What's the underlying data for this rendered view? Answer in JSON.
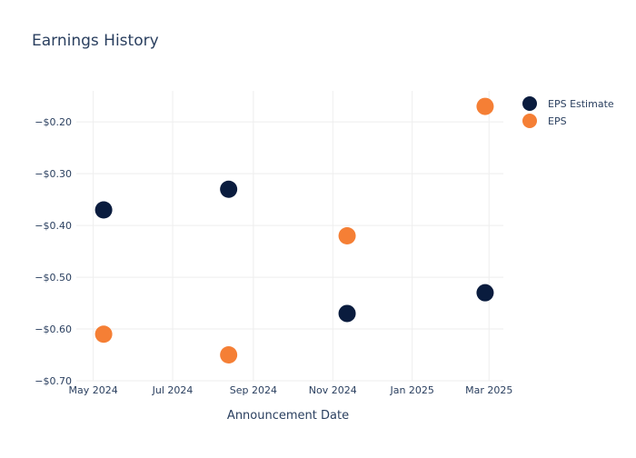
{
  "chart_data": {
    "type": "scatter",
    "title": "Earnings History",
    "xlabel": "Announcement Date",
    "ylabel": "",
    "x_tick_labels": [
      {
        "date": "2024-05-01",
        "label": "May 2024"
      },
      {
        "date": "2024-07-01",
        "label": "Jul 2024"
      },
      {
        "date": "2024-09-01",
        "label": "Sep 2024"
      },
      {
        "date": "2024-11-01",
        "label": "Nov 2024"
      },
      {
        "date": "2025-01-01",
        "label": "Jan 2025"
      },
      {
        "date": "2025-03-01",
        "label": "Mar 2025"
      }
    ],
    "y_ticks": [
      {
        "value": -0.2,
        "label": "−$0.20"
      },
      {
        "value": -0.3,
        "label": "−$0.30"
      },
      {
        "value": -0.4,
        "label": "−$0.40"
      },
      {
        "value": -0.5,
        "label": "−$0.50"
      },
      {
        "value": -0.6,
        "label": "−$0.60"
      },
      {
        "value": -0.7,
        "label": "−$0.70"
      }
    ],
    "xlim": [
      "2024-04-18",
      "2025-03-12"
    ],
    "ylim": [
      -0.7,
      -0.14
    ],
    "grid": true,
    "legend_position": "top-right",
    "series": [
      {
        "name": "EPS Estimate",
        "color": "#0a1c3e",
        "points": [
          {
            "x": "2024-05-09",
            "y": -0.37
          },
          {
            "x": "2024-08-13",
            "y": -0.33
          },
          {
            "x": "2024-11-12",
            "y": -0.57
          },
          {
            "x": "2025-02-26",
            "y": -0.53
          }
        ]
      },
      {
        "name": "EPS",
        "color": "#f57f35",
        "points": [
          {
            "x": "2024-05-09",
            "y": -0.61
          },
          {
            "x": "2024-08-13",
            "y": -0.65
          },
          {
            "x": "2024-11-12",
            "y": -0.42
          },
          {
            "x": "2025-02-26",
            "y": -0.17
          }
        ]
      }
    ]
  }
}
